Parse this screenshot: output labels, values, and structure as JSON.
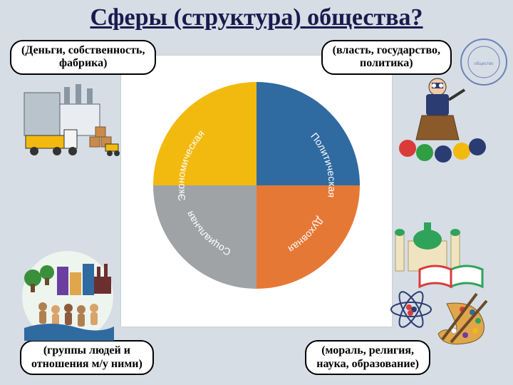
{
  "title": "Сферы (структура) общества?",
  "title_color": "#1a1a4d",
  "background_color": "#d6dde5",
  "panel_color": "#ffffff",
  "pie": {
    "type": "pie",
    "radius": 145,
    "slices": [
      {
        "label": "Экономическая",
        "color": "#f2b90f",
        "angle_start": 180,
        "angle_end": 270
      },
      {
        "label": "Политическая",
        "color": "#2f6aa0",
        "angle_start": 270,
        "angle_end": 360
      },
      {
        "label": "Духовная",
        "color": "#e67836",
        "angle_start": 0,
        "angle_end": 90
      },
      {
        "label": "Социальная",
        "color": "#9fa3a6",
        "angle_start": 90,
        "angle_end": 180
      }
    ],
    "label_color": "#ffffff",
    "label_fontsize": 14
  },
  "boxes": {
    "top_left": "(Деньги, собственность,\nфабрика)",
    "top_right": "(власть, государство,\nполитика)",
    "bottom_left": "(группы людей и\nотношения м/у ними)",
    "bottom_right": "(мораль, религия,\nнаука, образование)"
  },
  "box_style": {
    "border_color": "#000000",
    "background": "#ffffff",
    "border_radius": 18,
    "fontsize": 16
  },
  "illustrations": {
    "factory": {
      "building_colors": [
        "#b9c3cc",
        "#e9edf1",
        "#8a96a2"
      ],
      "truck_color": "#f2b90f",
      "forklift_color": "#f2b90f",
      "box_color": "#c98b4b"
    },
    "speaker": {
      "suit_color": "#2a3c72",
      "podium_color": "#8b5a2b",
      "audience_colors": [
        "#d93b3b",
        "#2f9e44",
        "#2a3c72",
        "#f2b90f"
      ]
    },
    "city": {
      "tree_color": "#3a8f3a",
      "building_colors": [
        "#6b3fa0",
        "#e0a64b",
        "#2f6aa0"
      ],
      "people_colors": [
        "#b08050",
        "#d9a36a",
        "#8c5a3c"
      ],
      "factory_color": "#6b2f2f",
      "water_color": "#2f6aa0"
    },
    "culture": {
      "mosque_dome": "#2fa35a",
      "mosque_body": "#f0e4c0",
      "book_colors": [
        "#2fa35a",
        "#d93b3b"
      ],
      "atom_nucleus_colors": [
        "#d93b3b",
        "#2a3c72"
      ],
      "atom_ring_color": "#2a3c72",
      "palette_color": "#e0a64b",
      "paint_dots": [
        "#d93b3b",
        "#2f6aa0",
        "#2fa35a",
        "#f2b90f",
        "#6b3fa0",
        "#ffffff"
      ]
    }
  }
}
